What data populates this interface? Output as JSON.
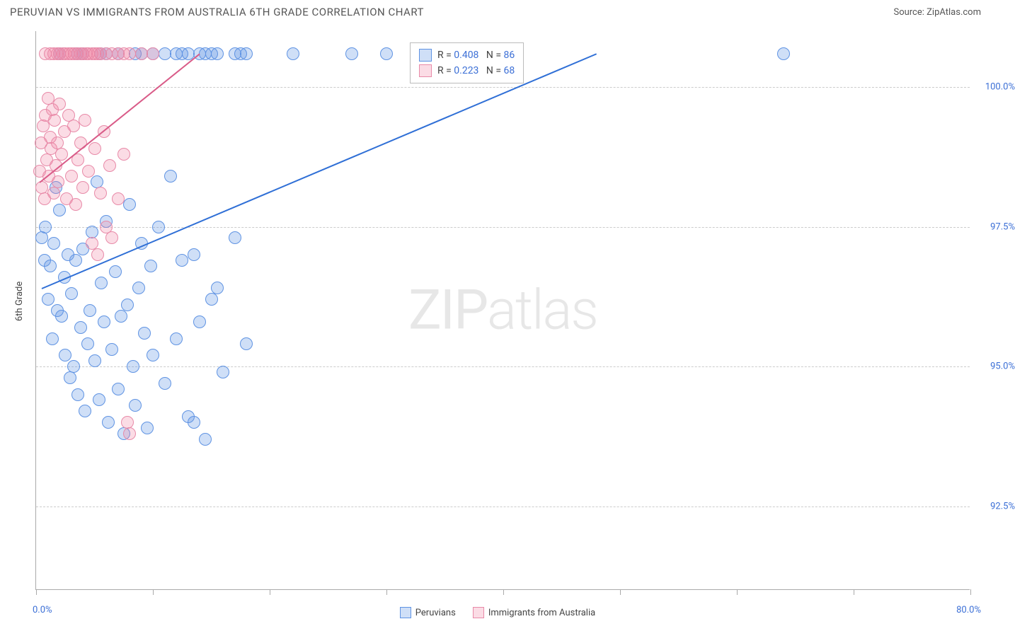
{
  "header": {
    "title": "PERUVIAN VS IMMIGRANTS FROM AUSTRALIA 6TH GRADE CORRELATION CHART",
    "source": "Source: ZipAtlas.com"
  },
  "watermark": {
    "zip": "ZIP",
    "atlas": "atlas"
  },
  "chart": {
    "type": "scatter",
    "ylabel": "6th Grade",
    "xlim": [
      0,
      80
    ],
    "ylim": [
      91,
      101
    ],
    "xlim_labels": {
      "min": "0.0%",
      "max": "80.0%"
    },
    "yticks": [
      92.5,
      95.0,
      97.5,
      100.0
    ],
    "ytick_labels": [
      "92.5%",
      "95.0%",
      "97.5%",
      "100.0%"
    ],
    "xtick_positions": [
      0,
      10,
      20,
      30,
      40,
      50,
      60,
      70,
      80
    ],
    "grid_color": "#cccccc",
    "axis_color": "#aaaaaa",
    "background": "#ffffff",
    "series": [
      {
        "name": "Peruvians",
        "color_fill": "rgba(96,150,230,0.30)",
        "color_stroke": "#5f93e3",
        "trend_color": "#2f6fd6",
        "R": "0.408",
        "N": "86",
        "trend": {
          "x1": 0.5,
          "y1": 96.4,
          "x2": 48,
          "y2": 100.6
        },
        "marker_radius": 9,
        "points": [
          [
            0.5,
            97.3
          ],
          [
            0.7,
            96.9
          ],
          [
            0.8,
            97.5
          ],
          [
            1.0,
            96.2
          ],
          [
            1.2,
            96.8
          ],
          [
            1.4,
            95.5
          ],
          [
            1.5,
            97.2
          ],
          [
            1.7,
            98.2
          ],
          [
            1.8,
            96.0
          ],
          [
            2.0,
            97.8
          ],
          [
            2.2,
            95.9
          ],
          [
            2.4,
            96.6
          ],
          [
            2.5,
            95.2
          ],
          [
            2.7,
            97.0
          ],
          [
            2.9,
            94.8
          ],
          [
            3.0,
            96.3
          ],
          [
            3.2,
            95.0
          ],
          [
            3.4,
            96.9
          ],
          [
            3.6,
            94.5
          ],
          [
            3.8,
            95.7
          ],
          [
            4.0,
            97.1
          ],
          [
            4.2,
            94.2
          ],
          [
            4.4,
            95.4
          ],
          [
            4.6,
            96.0
          ],
          [
            4.8,
            97.4
          ],
          [
            5.0,
            95.1
          ],
          [
            5.2,
            98.3
          ],
          [
            5.4,
            94.4
          ],
          [
            5.6,
            96.5
          ],
          [
            5.8,
            95.8
          ],
          [
            6.0,
            97.6
          ],
          [
            6.2,
            94.0
          ],
          [
            6.5,
            95.3
          ],
          [
            6.8,
            96.7
          ],
          [
            7.0,
            94.6
          ],
          [
            7.3,
            95.9
          ],
          [
            7.5,
            93.8
          ],
          [
            7.8,
            96.1
          ],
          [
            8.0,
            97.9
          ],
          [
            8.3,
            95.0
          ],
          [
            8.5,
            94.3
          ],
          [
            8.8,
            96.4
          ],
          [
            9.0,
            97.2
          ],
          [
            9.3,
            95.6
          ],
          [
            9.5,
            93.9
          ],
          [
            9.8,
            96.8
          ],
          [
            10.0,
            95.2
          ],
          [
            10.5,
            97.5
          ],
          [
            11.0,
            94.7
          ],
          [
            11.5,
            98.4
          ],
          [
            12.0,
            95.5
          ],
          [
            12.5,
            96.9
          ],
          [
            13.0,
            94.1
          ],
          [
            13.5,
            97.0
          ],
          [
            14.0,
            95.8
          ],
          [
            14.5,
            93.7
          ],
          [
            15.0,
            96.2
          ],
          [
            16.0,
            94.9
          ],
          [
            17.0,
            97.3
          ],
          [
            18.0,
            95.4
          ],
          [
            2.0,
            100.6
          ],
          [
            3.5,
            100.6
          ],
          [
            4.0,
            100.6
          ],
          [
            5.5,
            100.6
          ],
          [
            6.0,
            100.6
          ],
          [
            7.0,
            100.6
          ],
          [
            8.5,
            100.6
          ],
          [
            9.0,
            100.6
          ],
          [
            10.0,
            100.6
          ],
          [
            11.0,
            100.6
          ],
          [
            12.0,
            100.6
          ],
          [
            12.5,
            100.6
          ],
          [
            13.0,
            100.6
          ],
          [
            14.0,
            100.6
          ],
          [
            14.5,
            100.6
          ],
          [
            15.0,
            100.6
          ],
          [
            15.5,
            100.6
          ],
          [
            17.0,
            100.6
          ],
          [
            17.5,
            100.6
          ],
          [
            18.0,
            100.6
          ],
          [
            22.0,
            100.6
          ],
          [
            27.0,
            100.6
          ],
          [
            30.0,
            100.6
          ],
          [
            64.0,
            100.6
          ],
          [
            15.5,
            96.4
          ],
          [
            13.5,
            94.0
          ]
        ]
      },
      {
        "name": "Immigrants from Australia",
        "color_fill": "rgba(240,130,160,0.28)",
        "color_stroke": "#e88aa8",
        "trend_color": "#d95b88",
        "R": "0.223",
        "N": "68",
        "trend": {
          "x1": 0.3,
          "y1": 98.3,
          "x2": 14,
          "y2": 100.6
        },
        "marker_radius": 9,
        "points": [
          [
            0.3,
            98.5
          ],
          [
            0.4,
            99.0
          ],
          [
            0.5,
            98.2
          ],
          [
            0.6,
            99.3
          ],
          [
            0.7,
            98.0
          ],
          [
            0.8,
            99.5
          ],
          [
            0.9,
            98.7
          ],
          [
            1.0,
            99.8
          ],
          [
            1.1,
            98.4
          ],
          [
            1.2,
            99.1
          ],
          [
            1.3,
            98.9
          ],
          [
            1.4,
            99.6
          ],
          [
            1.5,
            98.1
          ],
          [
            1.6,
            99.4
          ],
          [
            1.7,
            98.6
          ],
          [
            1.8,
            99.0
          ],
          [
            1.9,
            98.3
          ],
          [
            2.0,
            99.7
          ],
          [
            2.2,
            98.8
          ],
          [
            2.4,
            99.2
          ],
          [
            2.6,
            98.0
          ],
          [
            2.8,
            99.5
          ],
          [
            3.0,
            98.4
          ],
          [
            3.2,
            99.3
          ],
          [
            3.4,
            97.9
          ],
          [
            3.6,
            98.7
          ],
          [
            3.8,
            99.0
          ],
          [
            4.0,
            98.2
          ],
          [
            4.2,
            99.4
          ],
          [
            4.5,
            98.5
          ],
          [
            4.8,
            97.2
          ],
          [
            5.0,
            98.9
          ],
          [
            5.3,
            97.0
          ],
          [
            5.5,
            98.1
          ],
          [
            5.8,
            99.2
          ],
          [
            6.0,
            97.5
          ],
          [
            6.3,
            98.6
          ],
          [
            6.5,
            97.3
          ],
          [
            7.0,
            98.0
          ],
          [
            7.5,
            98.8
          ],
          [
            7.8,
            94.0
          ],
          [
            8.0,
            93.8
          ],
          [
            0.8,
            100.6
          ],
          [
            1.2,
            100.6
          ],
          [
            1.5,
            100.6
          ],
          [
            1.8,
            100.6
          ],
          [
            2.0,
            100.6
          ],
          [
            2.3,
            100.6
          ],
          [
            2.5,
            100.6
          ],
          [
            2.8,
            100.6
          ],
          [
            3.0,
            100.6
          ],
          [
            3.3,
            100.6
          ],
          [
            3.5,
            100.6
          ],
          [
            3.8,
            100.6
          ],
          [
            4.0,
            100.6
          ],
          [
            4.3,
            100.6
          ],
          [
            4.5,
            100.6
          ],
          [
            4.8,
            100.6
          ],
          [
            5.0,
            100.6
          ],
          [
            5.3,
            100.6
          ],
          [
            5.5,
            100.6
          ],
          [
            6.0,
            100.6
          ],
          [
            6.5,
            100.6
          ],
          [
            7.0,
            100.6
          ],
          [
            7.5,
            100.6
          ],
          [
            8.0,
            100.6
          ],
          [
            9.0,
            100.6
          ],
          [
            10.0,
            100.6
          ]
        ]
      }
    ],
    "legend_box": {
      "r_prefix": "R = ",
      "n_prefix": "N = "
    },
    "bottom_legend": {
      "items": [
        {
          "label": "Peruvians",
          "fill": "rgba(96,150,230,0.30)",
          "stroke": "#5f93e3"
        },
        {
          "label": "Immigrants from Australia",
          "fill": "rgba(240,130,160,0.28)",
          "stroke": "#e88aa8"
        }
      ]
    }
  }
}
